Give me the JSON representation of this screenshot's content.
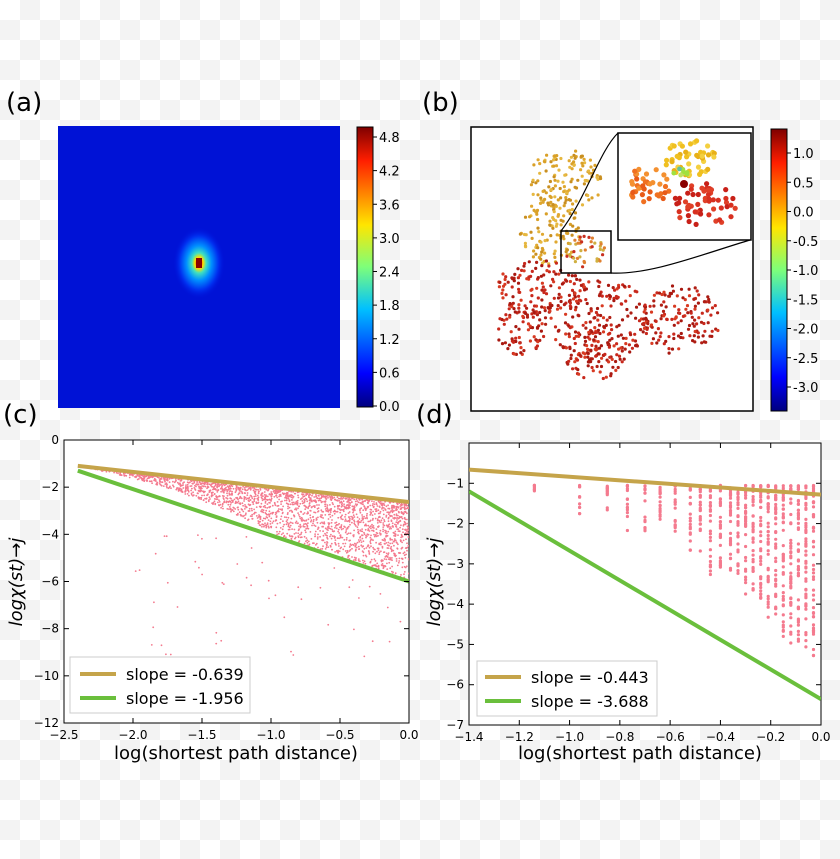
{
  "panels": {
    "a": {
      "label": "(a)"
    },
    "b": {
      "label": "(b)"
    },
    "c": {
      "label": "(c)"
    },
    "d": {
      "label": "(d)"
    }
  },
  "colorbars": {
    "a": {
      "ticks": [
        "4.8",
        "4.2",
        "3.6",
        "3.0",
        "2.4",
        "1.8",
        "1.2",
        "0.6",
        "0.0"
      ]
    },
    "b": {
      "ticks": [
        "1.0",
        "0.5",
        "0.0",
        "-0.5",
        "-1.0",
        "-1.5",
        "-2.0",
        "-2.5",
        "-3.0"
      ]
    }
  },
  "chart_data": [
    {
      "panel": "c",
      "type": "scatter",
      "xlabel": "log(shortest path distance)",
      "ylabel": "logχ(st)→j",
      "xlim": [
        -2.5,
        0.0
      ],
      "ylim": [
        -12,
        0
      ],
      "xticks": [
        "−2.5",
        "−2.0",
        "−1.5",
        "−1.0",
        "−0.5",
        "0.0"
      ],
      "xtick_values": [
        -2.5,
        -2.0,
        -1.5,
        -1.0,
        -0.5,
        0.0
      ],
      "yticks": [
        "0",
        "−2",
        "−4",
        "−6",
        "−8",
        "−10",
        "−12"
      ],
      "ytick_values": [
        0,
        -2,
        -4,
        -6,
        -8,
        -10,
        -12
      ],
      "series": [
        {
          "name": "slope = -0.639",
          "color": "#c5a44a",
          "x": [
            -2.4,
            0.0
          ],
          "y": [
            -1.1,
            -2.63
          ]
        },
        {
          "name": "slope = -1.956",
          "color": "#6abf3c",
          "x": [
            -2.4,
            0.0
          ],
          "y": [
            -1.3,
            -6.0
          ]
        }
      ]
    },
    {
      "panel": "d",
      "type": "scatter",
      "xlabel": "log(shortest path distance)",
      "ylabel": "logχ(st)→j",
      "xlim": [
        -1.4,
        0.0
      ],
      "ylim": [
        -7,
        0
      ],
      "xticks": [
        "−1.4",
        "−1.2",
        "−1.0",
        "−0.8",
        "−0.6",
        "−0.4",
        "−0.2",
        "0.0"
      ],
      "xtick_values": [
        -1.4,
        -1.2,
        -1.0,
        -0.8,
        -0.6,
        -0.4,
        -0.2,
        0.0
      ],
      "yticks": [
        "−1",
        "−2",
        "−3",
        "−4",
        "−5",
        "−6",
        "−7"
      ],
      "ytick_values": [
        -1,
        -2,
        -3,
        -4,
        -5,
        -6,
        -7
      ],
      "series": [
        {
          "name": "slope = -0.443",
          "color": "#c5a44a",
          "x": [
            -1.4,
            0.0
          ],
          "y": [
            -0.66,
            -1.28
          ]
        },
        {
          "name": "slope = -3.688",
          "color": "#6abf3c",
          "x": [
            -1.4,
            0.0
          ],
          "y": [
            -1.2,
            -6.36
          ]
        }
      ]
    }
  ],
  "colors": {
    "scatter": "#f47a8e",
    "frame": "#000000"
  }
}
